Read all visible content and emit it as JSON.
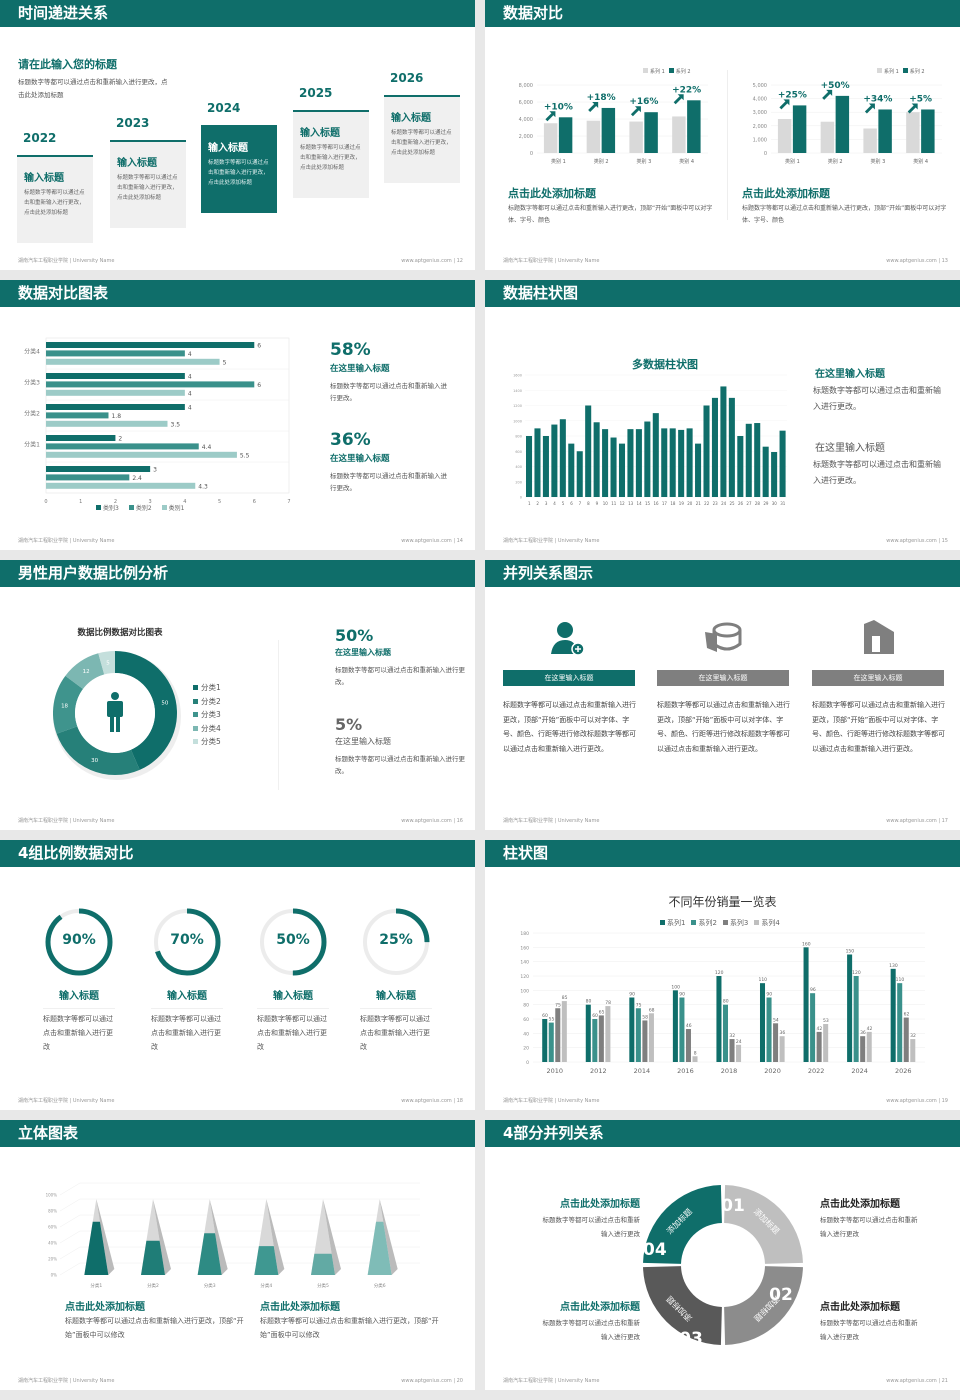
{
  "footer": {
    "school": "湖南汽车工程职业学院 | University Name",
    "site": "www.aptgenius.com"
  },
  "colors": {
    "teal": "#0f6e6a",
    "teal2": "#3a918b",
    "teal3": "#6aaea9",
    "teal4": "#9ccbc7",
    "gray": "#d9d9d9",
    "darkgray": "#5a5a5a"
  },
  "slides": [
    {
      "title": "时间递进关系",
      "page": "12",
      "heading": "请在此输入您的标题",
      "desc": "标题数字等都可以通过点击和重新输入进行更改，点击此处添加标题",
      "cards": [
        {
          "year": "2022",
          "title": "输入标题",
          "text": "标题数字等都可以通过点击和重新输入进行更改，点击此处添加标题"
        },
        {
          "year": "2023",
          "title": "输入标题",
          "text": "标题数字等都可以通过点击和重新输入进行更改，点击此处添加标题"
        },
        {
          "year": "2024",
          "title": "输入标题",
          "text": "标题数字等都可以通过点击和重新输入进行更改，点击此处添加标题"
        },
        {
          "year": "2025",
          "title": "输入标题",
          "text": "标题数字等都可以通过点击和重新输入进行更改，点击此处添加标题"
        },
        {
          "year": "2026",
          "title": "输入标题",
          "text": "标题数字等都可以通过点击和重新输入进行更改，点击此处添加标题"
        }
      ]
    },
    {
      "title": "数据对比",
      "page": "13",
      "blocks": [
        {
          "heading": "点击此处添加标题",
          "text": "标题数字等都可以通过点击和重新输入进行更改，顶部“开始”面板中可以对字体、字号、颜色"
        },
        {
          "heading": "点击此处添加标题",
          "text": "标题数字等都可以通过点击和重新输入进行更改，顶部“开始”面板中可以对字体、字号、颜色"
        }
      ]
    },
    {
      "title": "数据对比图表",
      "page": "14",
      "stats": [
        {
          "value": "58%",
          "heading": "在这里输入标题",
          "text": "标题数字等都可以通过点击和重新输入进行更改。"
        },
        {
          "value": "36%",
          "heading": "在这里输入标题",
          "text": "标题数字等都可以通过点击和重新输入进行更改。"
        }
      ]
    },
    {
      "title": "数据柱状图",
      "page": "15",
      "items": [
        {
          "heading": "在这里输入标题",
          "text": "标题数字等都可以通过点击和重新输入进行更改。"
        },
        {
          "heading": "在这里输入标题",
          "text": "标题数字等都可以通过点击和重新输入进行更改。"
        }
      ]
    },
    {
      "title": "男性用户数据比例分析",
      "page": "16",
      "stats": [
        {
          "value": "50%",
          "heading": "在这里输入标题",
          "text": "标题数字等都可以通过点击和重新输入进行更改。"
        },
        {
          "value": "5%",
          "heading": "在这里输入标题",
          "text": "标题数字等都可以通过点击和重新输入进行更改。"
        }
      ]
    },
    {
      "title": "并列关系图示",
      "page": "17",
      "cols": [
        {
          "icon": "user-add-icon",
          "label": "在这里输入标题",
          "text": "标题数字等都可以通过点击和重新输入进行更改，顶部“开始”面板中可以对字体、字号、颜色、行距等进行修改标题数字等都可以通过点击和重新输入进行更改。"
        },
        {
          "icon": "cheese-chart-icon",
          "label": "在这里输入标题",
          "text": "标题数字等都可以通过点击和重新输入进行更改，顶部“开始”面板中可以对字体、字号、颜色、行距等进行修改标题数字等都可以通过点击和重新输入进行更改。"
        },
        {
          "icon": "building-icon",
          "label": "在这里输入标题",
          "text": "标题数字等都可以通过点击和重新输入进行更改，顶部“开始”面板中可以对字体、字号、颜色、行距等进行修改标题数字等都可以通过点击和重新输入进行更改。"
        }
      ]
    },
    {
      "title": "4组比例数据对比",
      "page": "18",
      "rings": [
        {
          "label": "90%",
          "value": 90,
          "heading": "输入标题",
          "text": "标题数字等都可以通过点击和重新输入进行更改"
        },
        {
          "label": "70%",
          "value": 70,
          "heading": "输入标题",
          "text": "标题数字等都可以通过点击和重新输入进行更改"
        },
        {
          "label": "50%",
          "value": 50,
          "heading": "输入标题",
          "text": "标题数字等都可以通过点击和重新输入进行更改"
        },
        {
          "label": "25%",
          "value": 25,
          "heading": "输入标题",
          "text": "标题数字等都可以通过点击和重新输入进行更改"
        }
      ]
    },
    {
      "title": "柱状图",
      "page": "19"
    },
    {
      "title": "立体图表",
      "page": "20",
      "blocks": [
        {
          "heading": "点击此处添加标题",
          "text": "标题数字等都可以通过点击和重新输入进行更改，顶部“开始”面板中可以修改"
        },
        {
          "heading": "点击此处添加标题",
          "text": "标题数字等都可以通过点击和重新输入进行更改，顶部“开始”面板中可以修改"
        }
      ]
    },
    {
      "title": "4部分并列关系",
      "page": "21",
      "segments": [
        {
          "num": "01",
          "label": "添加标题"
        },
        {
          "num": "02",
          "label": "添加标题"
        },
        {
          "num": "03",
          "label": "添加标题"
        },
        {
          "num": "04",
          "label": "添加标题"
        }
      ],
      "texts": [
        {
          "heading": "点击此处添加标题",
          "text": "标题数字等都可以通过点击和重新输入进行更改"
        },
        {
          "heading": "点击此处添加标题",
          "text": "标题数字等都可以通过点击和重新输入进行更改"
        },
        {
          "heading": "点击此处添加标题",
          "text": "标题数字等都可以通过点击和重新输入进行更改"
        },
        {
          "heading": "点击此处添加标题",
          "text": "标题数字等都可以通过点击和重新输入进行更改"
        }
      ]
    }
  ],
  "chart_data": [
    {
      "type": "bar",
      "id": "compare-left",
      "categories": [
        "类别 1",
        "类别 2",
        "类别 3",
        "类别 4"
      ],
      "ylim": [
        0,
        8000
      ],
      "yticks": [
        "0",
        "2,000",
        "4,000",
        "6,000",
        "8,000"
      ],
      "series": [
        {
          "name": "系列 1",
          "values": [
            3500,
            3800,
            3700,
            4300
          ]
        },
        {
          "name": "系列 2",
          "values": [
            4200,
            5300,
            4800,
            6200
          ]
        }
      ],
      "annotations": [
        "+10%",
        "+18%",
        "+16%",
        "+22%"
      ]
    },
    {
      "type": "bar",
      "id": "compare-right",
      "categories": [
        "类别 1",
        "类别 2",
        "类别 3",
        "类别 4"
      ],
      "ylim": [
        0,
        5000
      ],
      "yticks": [
        "0",
        "1,000",
        "2,000",
        "3,000",
        "4,000",
        "5,000"
      ],
      "series": [
        {
          "name": "系列 1",
          "values": [
            2500,
            2300,
            1800,
            3000
          ]
        },
        {
          "name": "系列 2",
          "values": [
            3500,
            4200,
            3200,
            3200
          ]
        }
      ],
      "annotations": [
        "+25%",
        "+50%",
        "+34%",
        "+5%"
      ]
    },
    {
      "type": "bar",
      "id": "hbar",
      "orientation": "horizontal",
      "categories": [
        "",
        "分类1",
        "分类2",
        "分类3",
        "分类4"
      ],
      "xlim": [
        0,
        7
      ],
      "xticks": [
        "0",
        "1",
        "2",
        "3",
        "4",
        "5",
        "6",
        "7"
      ],
      "series": [
        {
          "name": "类别3",
          "values": [
            3,
            2,
            4,
            4,
            6
          ]
        },
        {
          "name": "类别2",
          "values": [
            2.4,
            4.4,
            1.8,
            6,
            4
          ]
        },
        {
          "name": "类别1",
          "values": [
            4.3,
            5.5,
            3.5,
            4,
            5
          ]
        }
      ],
      "legend": "bottom"
    },
    {
      "type": "bar",
      "id": "multi",
      "title": "多数据柱状图",
      "ylim": [
        0,
        1600
      ],
      "yticks": [
        "0",
        "200",
        "400",
        "600",
        "800",
        "1000",
        "1200",
        "1400",
        "1600"
      ],
      "categories": [
        "1",
        "2",
        "3",
        "4",
        "5",
        "6",
        "7",
        "8",
        "9",
        "10",
        "11",
        "12",
        "13",
        "14",
        "15",
        "16",
        "17",
        "18",
        "19",
        "20",
        "21",
        "22",
        "23",
        "24",
        "25",
        "26",
        "27",
        "28",
        "29",
        "30",
        "31"
      ],
      "values": [
        800,
        900,
        800,
        950,
        1020,
        700,
        600,
        1200,
        980,
        890,
        780,
        700,
        890,
        890,
        990,
        1100,
        900,
        900,
        880,
        900,
        700,
        1200,
        1300,
        1450,
        1300,
        800,
        960,
        970,
        660,
        590,
        870
      ]
    },
    {
      "type": "pie",
      "id": "donut",
      "title": "数据比例数据对比图表",
      "categories": [
        "分类1",
        "分类2",
        "分类3",
        "分类4",
        "分类5"
      ],
      "values": [
        50,
        30,
        18,
        12,
        5
      ],
      "legend": "right"
    },
    {
      "type": "bar",
      "id": "sales",
      "title": "不同年份销量一览表",
      "categories": [
        "2010",
        "2012",
        "2014",
        "2016",
        "2018",
        "2020",
        "2022",
        "2024",
        "2026"
      ],
      "ylim": [
        0,
        180
      ],
      "yticks": [
        "0",
        "20",
        "40",
        "60",
        "80",
        "100",
        "120",
        "140",
        "160",
        "180"
      ],
      "legend": "top",
      "series": [
        {
          "name": "系列1",
          "values": [
            60,
            80,
            90,
            100,
            120,
            110,
            160,
            150,
            130
          ]
        },
        {
          "name": "系列2",
          "values": [
            55,
            60,
            75,
            90,
            80,
            90,
            96,
            120,
            110
          ]
        },
        {
          "name": "系列3",
          "values": [
            75,
            65,
            58,
            46,
            32,
            54,
            42,
            36,
            62
          ]
        },
        {
          "name": "系列4",
          "values": [
            85,
            78,
            68,
            8,
            24,
            36,
            53,
            42,
            32
          ]
        }
      ]
    },
    {
      "type": "bar",
      "id": "pyramid",
      "style": "3d-pyramid",
      "categories": [
        "分类1",
        "分类2",
        "分类3",
        "分类4",
        "分类5",
        "分类6"
      ],
      "ylim": [
        0,
        100
      ],
      "yticks": [
        "0%",
        "20%",
        "40%",
        "60%",
        "80%",
        "100%"
      ],
      "values": [
        70,
        45,
        55,
        38,
        28,
        70
      ]
    }
  ]
}
